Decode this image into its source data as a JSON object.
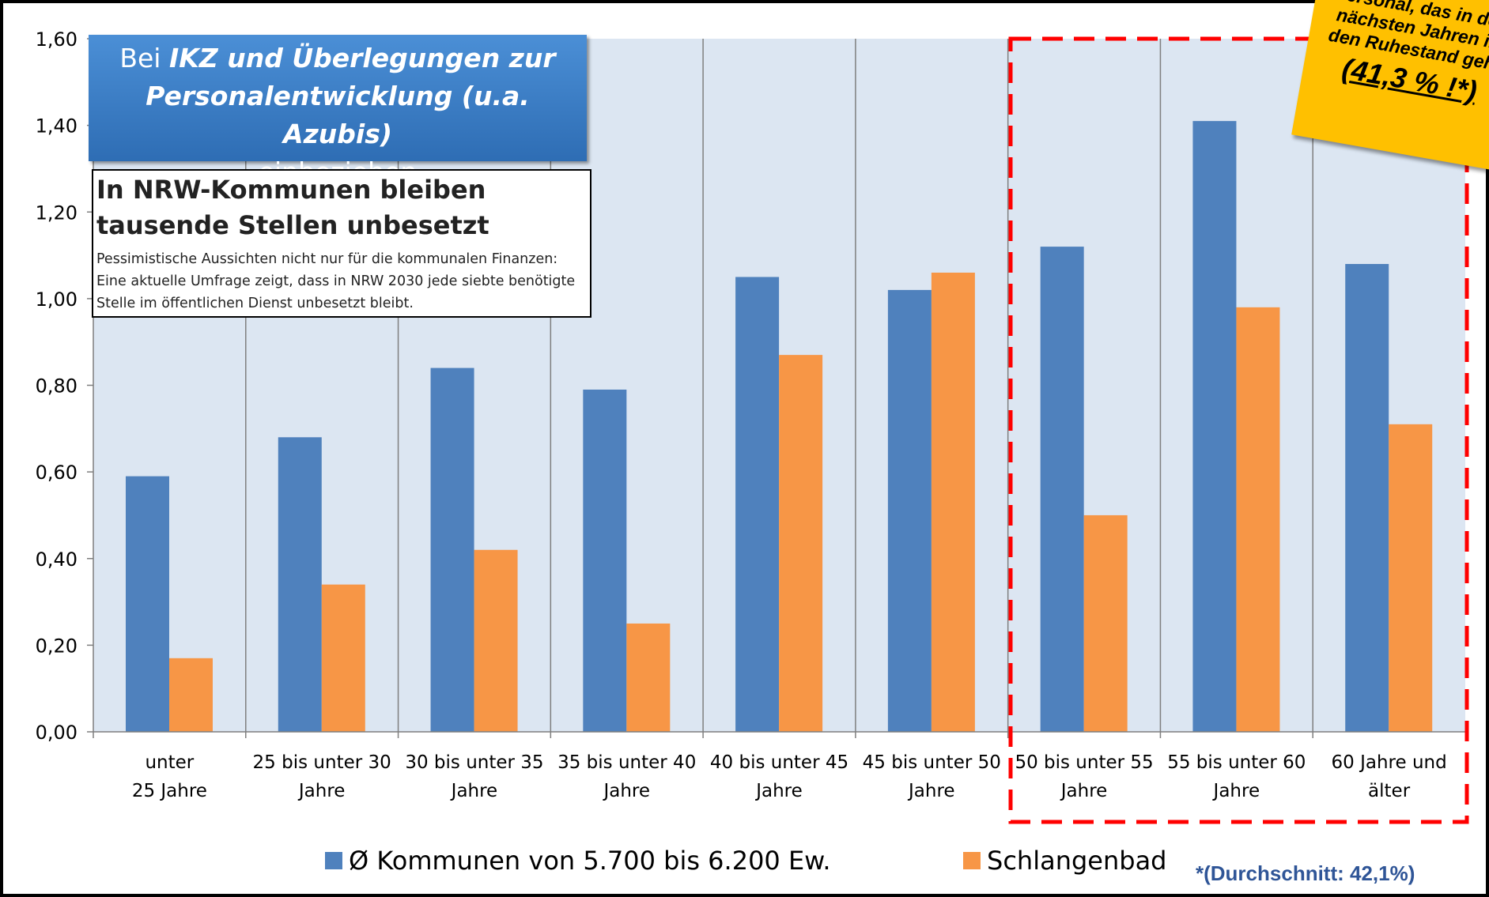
{
  "chart_data": {
    "type": "bar",
    "categories": [
      "unter\n25 Jahre",
      "25 bis unter 30\nJahre",
      "30 bis unter 35\nJahre",
      "35 bis unter 40\nJahre",
      "40 bis unter 45\nJahre",
      "45 bis unter 50\nJahre",
      "50 bis unter 55\nJahre",
      "55 bis unter 60\nJahre",
      "60 Jahre und\nälter"
    ],
    "series": [
      {
        "name": "Ø Kommunen von 5.700 bis 6.200 Ew.",
        "color": "#4f81bd",
        "values": [
          0.59,
          0.68,
          0.84,
          0.79,
          1.05,
          1.02,
          1.12,
          1.41,
          1.08
        ]
      },
      {
        "name": "Schlangenbad",
        "color": "#f79646",
        "values": [
          0.17,
          0.34,
          0.42,
          0.25,
          0.87,
          1.06,
          0.5,
          0.98,
          0.71
        ]
      }
    ],
    "ylim": [
      0,
      1.6
    ],
    "yticks": [
      {
        "value": 0,
        "label": "0,00"
      },
      {
        "value": 0.2,
        "label": "0,20"
      },
      {
        "value": 0.4,
        "label": "0,40"
      },
      {
        "value": 0.6,
        "label": "0,60"
      },
      {
        "value": 0.8,
        "label": "0,80"
      },
      {
        "value": 1.0,
        "label": "1,00"
      },
      {
        "value": 1.2,
        "label": "1,20"
      },
      {
        "value": 1.4,
        "label": "1,40"
      },
      {
        "value": 1.6,
        "label": "1,60"
      }
    ],
    "legend": "bottom",
    "annotations": {
      "callout": [
        "Bei",
        "IKZ und Überlegungen zur",
        "Personalentwicklung (u.a. Azubis)",
        "einbeziehen"
      ],
      "news_headline": "In NRW-Kommunen bleiben tausende Stellen unbesetzt",
      "news_body": "Pessimistische Aussichten nicht nur für die kommunalen Finanzen: Eine aktuelle Umfrage zeigt, dass in NRW 2030 jede siebte benötigte Stelle im öffentlichen Dienst unbesetzt bleibt.",
      "note": "Personal, das in den nächsten Jahren in den Ruhestand geht",
      "note_value": "(41,3 % !*)",
      "footnote": "*(Durchschnitt: 42,1%)"
    }
  }
}
